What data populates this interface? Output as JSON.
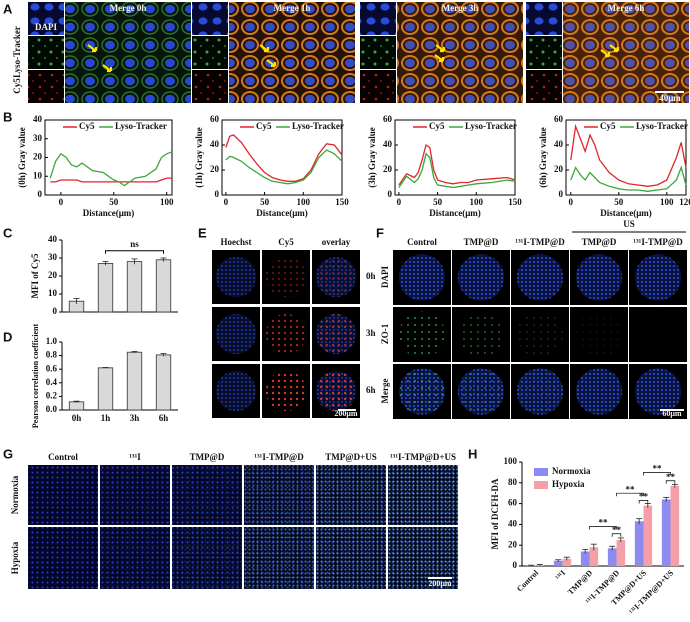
{
  "figure": {
    "panels": [
      "A",
      "B",
      "C",
      "D",
      "E",
      "F",
      "G",
      "H"
    ],
    "a": {
      "headers": [
        "Merge 0h",
        "Merge 1h",
        "Merge 3h",
        "Merge 6h"
      ],
      "channels": [
        "DAPI",
        "Lyso-Tracker",
        "Cy5"
      ],
      "scale": "40μm"
    },
    "e": {
      "columns": [
        "Hoechst",
        "Cy5",
        "overlay"
      ],
      "rows": [
        "0h",
        "3h",
        "6h"
      ],
      "scale": "200μm"
    },
    "f": {
      "columns": [
        "Control",
        "TMP@D",
        "¹³¹I-TMP@D",
        "TMP@D",
        "¹³¹I-TMP@D"
      ],
      "group": "US",
      "rows": [
        "DAPI",
        "ZO-1",
        "Merge"
      ],
      "scale": "60μm"
    },
    "g": {
      "columns": [
        "Control",
        "¹³¹I",
        "TMP@D",
        "¹³¹I-TMP@D",
        "TMP@D+US",
        "¹³¹I-TMP@D+US"
      ],
      "rows": [
        "Normoxia",
        "Hypoxia"
      ],
      "scale": "200μm"
    }
  },
  "chart_data": [
    {
      "type": "line",
      "ylabel": "(0h) Gray value",
      "xlabel": "Distance(μm)",
      "x": [
        -10,
        -5,
        0,
        5,
        10,
        15,
        20,
        30,
        40,
        50,
        55,
        60,
        70,
        80,
        90,
        95,
        100,
        105
      ],
      "series": [
        {
          "name": "Cy5",
          "color": "#e0262b",
          "values": [
            7,
            7,
            8,
            8,
            8,
            8,
            7,
            7,
            7,
            7,
            7,
            7,
            7,
            7,
            7,
            8,
            9,
            9
          ]
        },
        {
          "name": "Lyso-Tracker",
          "color": "#3aa83a",
          "values": [
            9,
            18,
            22,
            20,
            16,
            15,
            17,
            13,
            12,
            8,
            7,
            5,
            9,
            10,
            14,
            20,
            22,
            23
          ]
        }
      ],
      "xlim": [
        -15,
        105
      ],
      "xticks": [
        0,
        50,
        100
      ],
      "ylim": [
        0,
        40
      ],
      "yticks": [
        0,
        10,
        20,
        30,
        40
      ]
    },
    {
      "type": "line",
      "ylabel": "(1h) Gray value",
      "xlabel": "Distance(μm)",
      "x": [
        0,
        5,
        10,
        20,
        30,
        40,
        50,
        60,
        70,
        80,
        90,
        100,
        110,
        120,
        130,
        140,
        150
      ],
      "series": [
        {
          "name": "Cy5",
          "color": "#e0262b",
          "values": [
            38,
            47,
            48,
            42,
            33,
            25,
            18,
            14,
            12,
            11,
            11,
            13,
            20,
            33,
            41,
            40,
            32
          ]
        },
        {
          "name": "Lyso-Tracker",
          "color": "#3aa83a",
          "values": [
            28,
            31,
            30,
            27,
            22,
            18,
            14,
            11,
            10,
            9,
            10,
            12,
            18,
            30,
            36,
            33,
            27
          ]
        }
      ],
      "xlim": [
        -5,
        150
      ],
      "xticks": [
        0,
        50,
        100,
        150
      ],
      "ylim": [
        0,
        60
      ],
      "yticks": [
        0,
        20,
        40,
        60
      ]
    },
    {
      "type": "line",
      "ylabel": "(3h) Gray value",
      "xlabel": "Distance(μm)",
      "x": [
        0,
        10,
        20,
        25,
        30,
        35,
        40,
        45,
        50,
        60,
        70,
        80,
        90,
        100,
        120,
        140,
        150
      ],
      "series": [
        {
          "name": "Cy5",
          "color": "#e0262b",
          "values": [
            8,
            17,
            14,
            18,
            28,
            40,
            38,
            20,
            12,
            10,
            9,
            10,
            10,
            12,
            13,
            14,
            12
          ]
        },
        {
          "name": "Lyso-Tracker",
          "color": "#3aa83a",
          "values": [
            6,
            15,
            10,
            13,
            20,
            33,
            30,
            14,
            8,
            7,
            6,
            7,
            8,
            9,
            10,
            12,
            11
          ]
        }
      ],
      "xlim": [
        -5,
        150
      ],
      "xticks": [
        0,
        50,
        100,
        150
      ],
      "ylim": [
        0,
        60
      ],
      "yticks": [
        0,
        20,
        40,
        60
      ]
    },
    {
      "type": "line",
      "ylabel": "(6h) Gray value",
      "xlabel": "Distance(μm)",
      "x": [
        0,
        5,
        10,
        15,
        20,
        25,
        30,
        40,
        50,
        60,
        70,
        80,
        90,
        100,
        110,
        115,
        120
      ],
      "series": [
        {
          "name": "Cy5",
          "color": "#e0262b",
          "values": [
            28,
            55,
            45,
            35,
            48,
            40,
            28,
            18,
            12,
            9,
            8,
            7,
            8,
            12,
            30,
            42,
            22
          ]
        },
        {
          "name": "Lyso-Tracker",
          "color": "#3aa83a",
          "values": [
            12,
            22,
            16,
            12,
            18,
            14,
            10,
            7,
            5,
            4,
            4,
            3,
            4,
            5,
            12,
            22,
            8
          ]
        }
      ],
      "xlim": [
        -5,
        120
      ],
      "xticks": [
        0,
        50,
        100,
        120
      ],
      "ylim": [
        0,
        60
      ],
      "yticks": [
        0,
        20,
        40,
        60
      ]
    },
    {
      "type": "bar",
      "ylabel": "MFI of Cy5",
      "values": [
        6,
        27,
        28,
        29
      ],
      "errors": [
        1.5,
        1,
        1.5,
        1
      ],
      "color": "#d9d9d9",
      "ylim": [
        0,
        40
      ],
      "yticks": [
        0,
        10,
        20,
        30,
        40
      ],
      "annotations": [
        "ns"
      ]
    },
    {
      "type": "bar",
      "ylabel": "Pearson correlation coefficient",
      "categories": [
        "0h",
        "1h",
        "3h",
        "6h"
      ],
      "values": [
        0.12,
        0.62,
        0.85,
        0.81
      ],
      "errors": [
        0.01,
        0.005,
        0.01,
        0.02
      ],
      "color": "#d9d9d9",
      "ylim": [
        0,
        1
      ],
      "yticks": [
        {
          "value": 0,
          "label": "0.0"
        },
        0.2,
        0.4,
        0.6,
        0.8,
        {
          "value": 1,
          "label": "1.0"
        }
      ]
    },
    {
      "type": "bar",
      "ylabel": "MFI of DCFH-DA",
      "categories": [
        "Control",
        "¹³¹I",
        "TMP@D",
        "¹³¹I-TMP@D",
        "TMP@D+US",
        "¹³¹I-TMP@D+US"
      ],
      "series": [
        {
          "name": "Normoxia",
          "color": "#8c8cf0",
          "values": [
            0.5,
            5,
            14,
            17,
            43,
            64
          ],
          "errors": [
            0.3,
            1,
            2,
            2,
            2.5,
            2
          ]
        },
        {
          "name": "Hypoxia",
          "color": "#f5a0a8",
          "values": [
            1,
            7,
            18,
            25,
            58,
            77
          ],
          "errors": [
            0.5,
            1.5,
            3,
            2,
            2,
            1.5
          ]
        }
      ],
      "ylim": [
        0,
        100
      ],
      "yticks": [
        0,
        20,
        40,
        60,
        80,
        100
      ],
      "legend": "top-left",
      "annotations": [
        "**",
        "**",
        "**",
        "**",
        "**",
        "**"
      ]
    }
  ]
}
